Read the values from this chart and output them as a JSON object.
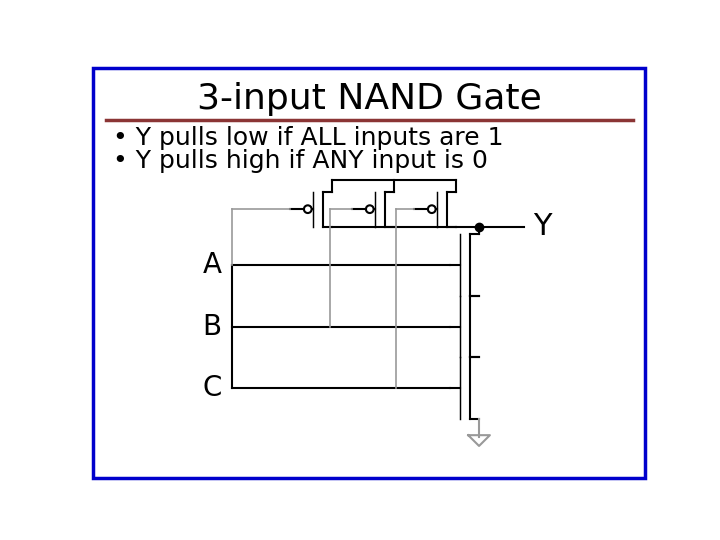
{
  "title": "3-input NAND Gate",
  "title_fontsize": 26,
  "title_color": "#000000",
  "separator_color": "#8B3535",
  "border_color": "#0000CC",
  "bullet1": "Y pulls low if ALL inputs are 1",
  "bullet2": "Y pulls high if ANY input is 0",
  "bullet_fontsize": 18,
  "bg_color": "#FFFFFF",
  "circuit_color": "#000000",
  "grey_color": "#999999",
  "circuit_lw": 1.5,
  "dot_color": "#000000",
  "gnd_color": "#999999"
}
